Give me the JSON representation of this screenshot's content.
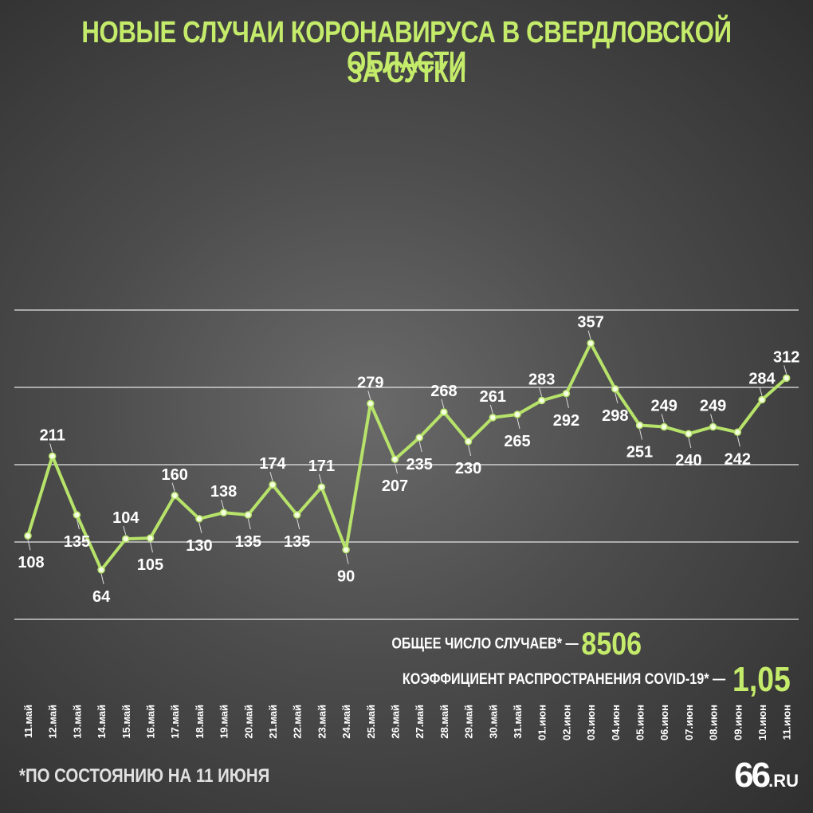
{
  "title_line1": "НОВЫЕ СЛУЧАИ КОРОНАВИРУСА В СВЕРДЛОВСКОЙ ОБЛАСТИ",
  "title_line2": "ЗА СУТКИ",
  "colors": {
    "accent": "#c4ec6a",
    "text": "#ffffff",
    "grid": "#e0e0e0"
  },
  "stats": {
    "total_label": "ОБЩЕЕ ЧИСЛО СЛУЧАЕВ* —",
    "total_value": "8506",
    "rate_label": "КОЭФФИЦИЕНТ РАСПРОСТРАНЕНИЯ COVID-19* —",
    "rate_value": "1,05"
  },
  "footnote": "*ПО СОСТОЯНИЮ НА 11 ИЮНЯ",
  "logo": {
    "number": "66",
    "domain": ".RU"
  },
  "chart_data": {
    "type": "line",
    "title": "НОВЫЕ СЛУЧАИ КОРОНАВИРУСА В СВЕРДЛОВСКОЙ ОБЛАСТИ ЗА СУТКИ",
    "xlabel": "",
    "ylabel": "",
    "ylim": [
      0,
      400
    ],
    "grid": true,
    "legend": "none",
    "categories": [
      "11.май",
      "12.май",
      "13.май",
      "14.май",
      "15.май",
      "16.май",
      "17.май",
      "18.май",
      "19.май",
      "20.май",
      "21.май",
      "22.май",
      "23.май",
      "24.май",
      "25.май",
      "26.май",
      "27.май",
      "28.май",
      "29.май",
      "30.май",
      "31.май",
      "01.июн",
      "02.июн",
      "03.июн",
      "04.июн",
      "05.июн",
      "06.июн",
      "07.июн",
      "08.июн",
      "09.июн",
      "10.июн",
      "11.июн"
    ],
    "values": [
      108,
      211,
      135,
      64,
      104,
      105,
      160,
      130,
      138,
      135,
      174,
      135,
      171,
      90,
      279,
      207,
      235,
      268,
      230,
      261,
      265,
      283,
      292,
      357,
      298,
      251,
      249,
      240,
      249,
      242,
      284,
      312
    ],
    "labels": [
      "108",
      "211",
      "135",
      "64",
      "104",
      "105",
      "160",
      "130",
      "138",
      "135",
      "174",
      "135",
      "171",
      "90",
      "279",
      "207",
      "235",
      "268",
      "230",
      "261",
      "265",
      "283",
      "292",
      "357",
      "298",
      "251",
      "249",
      "240",
      "249",
      "242",
      "284",
      "312"
    ]
  }
}
